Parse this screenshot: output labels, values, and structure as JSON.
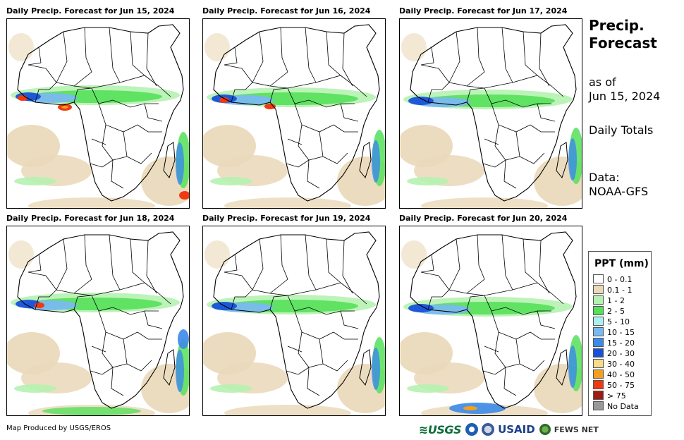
{
  "panels": [
    {
      "title": "Daily Precip. Forecast for Jun 15, 2024"
    },
    {
      "title": "Daily Precip. Forecast for Jun 16, 2024"
    },
    {
      "title": "Daily Precip. Forecast for Jun 17, 2024"
    },
    {
      "title": "Daily Precip. Forecast for Jun 18, 2024"
    },
    {
      "title": "Daily Precip. Forecast for Jun 19, 2024"
    },
    {
      "title": "Daily Precip. Forecast for Jun 20, 2024"
    }
  ],
  "side": {
    "title_line1": "Precip.",
    "title_line2": "Forecast",
    "asof_line1": "as of",
    "asof_line2": "Jun 15, 2024",
    "totals": "Daily Totals",
    "data_line1": "Data:",
    "data_line2": "NOAA-GFS"
  },
  "legend": {
    "title": "PPT (mm)",
    "items": [
      {
        "label": "0 - 0.1",
        "color": "#ffffff"
      },
      {
        "label": "0.1 - 1",
        "color": "#ead8b8"
      },
      {
        "label": "1 - 2",
        "color": "#b5f2b0"
      },
      {
        "label": "2 - 5",
        "color": "#55e05a"
      },
      {
        "label": "5 - 10",
        "color": "#aaf0ef"
      },
      {
        "label": "10 - 15",
        "color": "#7ab8f0"
      },
      {
        "label": "15 - 20",
        "color": "#3b8ae8"
      },
      {
        "label": "20 - 30",
        "color": "#1652d8"
      },
      {
        "label": "30 - 40",
        "color": "#f6dc8a"
      },
      {
        "label": "40 - 50",
        "color": "#f2a020"
      },
      {
        "label": "50 - 75",
        "color": "#ef3a10"
      },
      {
        "label": "> 75",
        "color": "#9e1a14"
      },
      {
        "label": "No Data",
        "color": "#999999"
      }
    ]
  },
  "footer": {
    "credit": "Map Produced by USGS/EROS",
    "logo_usgs": "≋USGS",
    "logo_usaid": "USAID",
    "logo_fews": "FEWS NET"
  }
}
